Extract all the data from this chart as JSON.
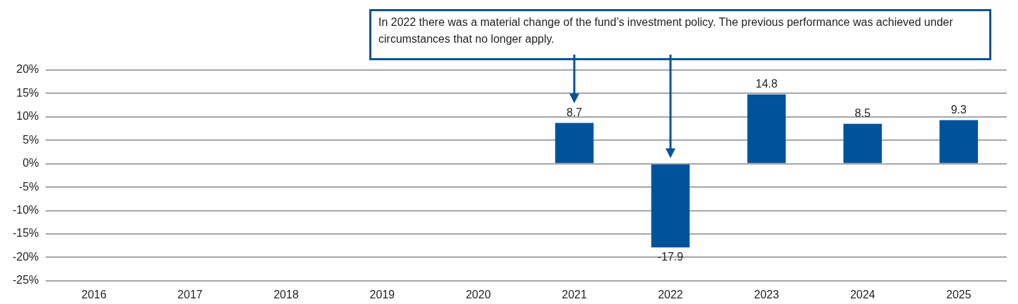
{
  "chart_data": {
    "type": "bar",
    "categories": [
      "2016",
      "2017",
      "2018",
      "2019",
      "2020",
      "2021",
      "2022",
      "2023",
      "2024",
      "2025"
    ],
    "values": [
      null,
      null,
      null,
      null,
      null,
      8.7,
      -17.9,
      14.8,
      8.5,
      9.3
    ],
    "color": "#00539b",
    "ylim": [
      -25,
      20
    ],
    "yticks": [
      {
        "value": -25,
        "label": "-25%"
      },
      {
        "value": -20,
        "label": "-20%"
      },
      {
        "value": -15,
        "label": "-15%"
      },
      {
        "value": -10,
        "label": "-10%"
      },
      {
        "value": -5,
        "label": "-5%"
      },
      {
        "value": 0,
        "label": "0%"
      },
      {
        "value": 5,
        "label": "5%"
      },
      {
        "value": 10,
        "label": "10%"
      },
      {
        "value": 15,
        "label": "15%"
      },
      {
        "value": 20,
        "label": "20%"
      }
    ],
    "grid": "y",
    "legend": false,
    "data_labels": true,
    "annotations": [
      "In 2022 there was a material change of the fund’s investment policy. The previous performance was achieved under circumstances that no longer apply."
    ]
  }
}
